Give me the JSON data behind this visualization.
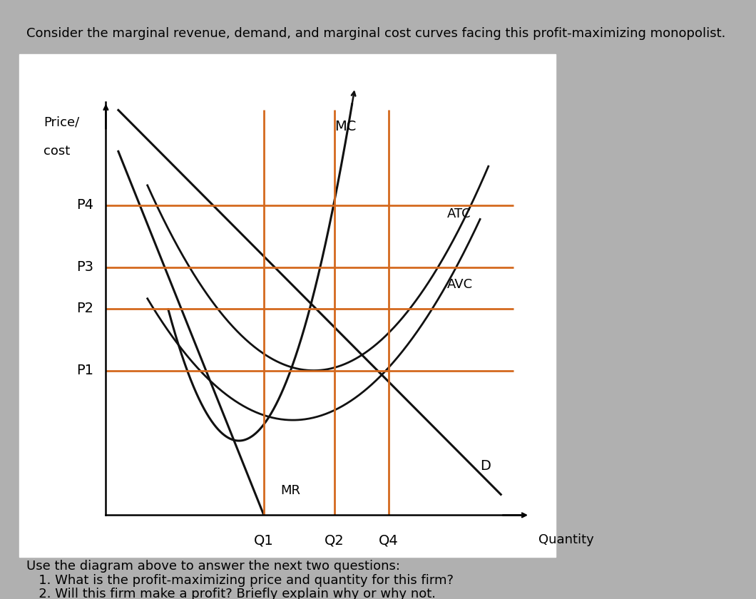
{
  "bg_color": "#b0b0b0",
  "chart_bg": "#ffffff",
  "white_box_color": "#ffffff",
  "title_text": "Consider the marginal revenue, demand, and marginal cost curves facing this profit-maximizing monopolist.",
  "footer_lines": [
    "Use the diagram above to answer the next two questions:",
    "   1. What is the profit-maximizing price and quantity for this firm?",
    "   2. Will this firm make a profit? Briefly explain why or why not."
  ],
  "xlim": [
    0,
    10
  ],
  "ylim": [
    0,
    10
  ],
  "price_labels": [
    "P4",
    "P3",
    "P2",
    "P1"
  ],
  "price_vals": [
    7.5,
    6.0,
    5.0,
    3.5
  ],
  "qty_labels": [
    "Q1",
    "Q2",
    "Q4"
  ],
  "qty_vals": [
    3.8,
    5.5,
    6.8
  ],
  "orange_color": "#d4691e",
  "curve_color": "#111111",
  "lw_main": 2.2,
  "lw_orange": 2.0
}
